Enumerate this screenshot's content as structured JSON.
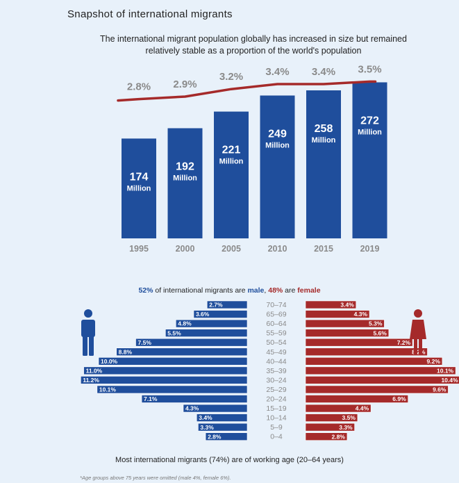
{
  "header": {
    "title": "Snapshot of international migrants",
    "subtitle": "The international migrant population globally has increased in size but remained relatively stable as a proportion of the world's population"
  },
  "chart_data": [
    {
      "type": "bar",
      "categories": [
        "1995",
        "2000",
        "2005",
        "2010",
        "2015",
        "2019"
      ],
      "values": [
        174,
        192,
        221,
        249,
        258,
        272
      ],
      "value_labels": [
        "174",
        "192",
        "221",
        "249",
        "258",
        "272"
      ],
      "unit_label": "Million",
      "line_series": {
        "values": [
          2.8,
          2.9,
          3.2,
          3.4,
          3.4,
          3.5
        ],
        "labels": [
          "2.8%",
          "2.9%",
          "3.2%",
          "3.4%",
          "3.4%",
          "3.5%"
        ]
      },
      "colors": {
        "bar": "#1f4e9c",
        "line": "#a52a2a",
        "pct_label": "#8a8a8a",
        "year_label": "#8a8a8a"
      }
    },
    {
      "type": "bar",
      "orientation": "population-pyramid",
      "categories": [
        "70–74",
        "65–69",
        "60–64",
        "55–59",
        "50–54",
        "45–49",
        "40–44",
        "35–39",
        "30–24",
        "25–29",
        "20–24",
        "15–19",
        "10–14",
        "5–9",
        "0–4"
      ],
      "series": [
        {
          "side": "male",
          "values": [
            2.7,
            3.6,
            4.8,
            5.5,
            7.5,
            8.8,
            10.0,
            11.0,
            11.2,
            10.1,
            7.1,
            4.3,
            3.4,
            3.3,
            2.8
          ],
          "labels": [
            "2.7%",
            "3.6%",
            "4.8%",
            "5.5%",
            "7.5%",
            "8.8%",
            "10.0%",
            "11.0%",
            "11.2%",
            "10.1%",
            "7.1%",
            "4.3%",
            "3.4%",
            "3.3%",
            "2.8%"
          ]
        },
        {
          "side": "female",
          "values": [
            3.4,
            4.3,
            5.3,
            5.6,
            7.2,
            8.2,
            9.2,
            10.1,
            10.4,
            9.6,
            6.9,
            4.4,
            3.5,
            3.3,
            2.8
          ],
          "labels": [
            "3.4%",
            "4.3%",
            "5.3%",
            "5.6%",
            "7.2%",
            "8.2%",
            "9.2%",
            "10.1%",
            "10.4%",
            "9.6%",
            "6.9%",
            "4.4%",
            "3.5%",
            "3.3%",
            "2.8%"
          ]
        }
      ],
      "colors": {
        "male": "#1f4e9c",
        "female": "#a52a2a",
        "age_label": "#8a8a8a"
      }
    }
  ],
  "pyramid": {
    "male_pct": "52%",
    "text_middle": " of international migrants are ",
    "male_word": "male",
    "comma": ", ",
    "female_pct": "48%",
    "text_are": " are ",
    "female_word": "female",
    "caption": "Most international migrants (74%) are of working age (20–64 years)",
    "footnote": "*Age groups above 75 years were omitted (male 4%, female 6%).",
    "icons": [
      "male-person-icon",
      "female-person-icon"
    ]
  }
}
